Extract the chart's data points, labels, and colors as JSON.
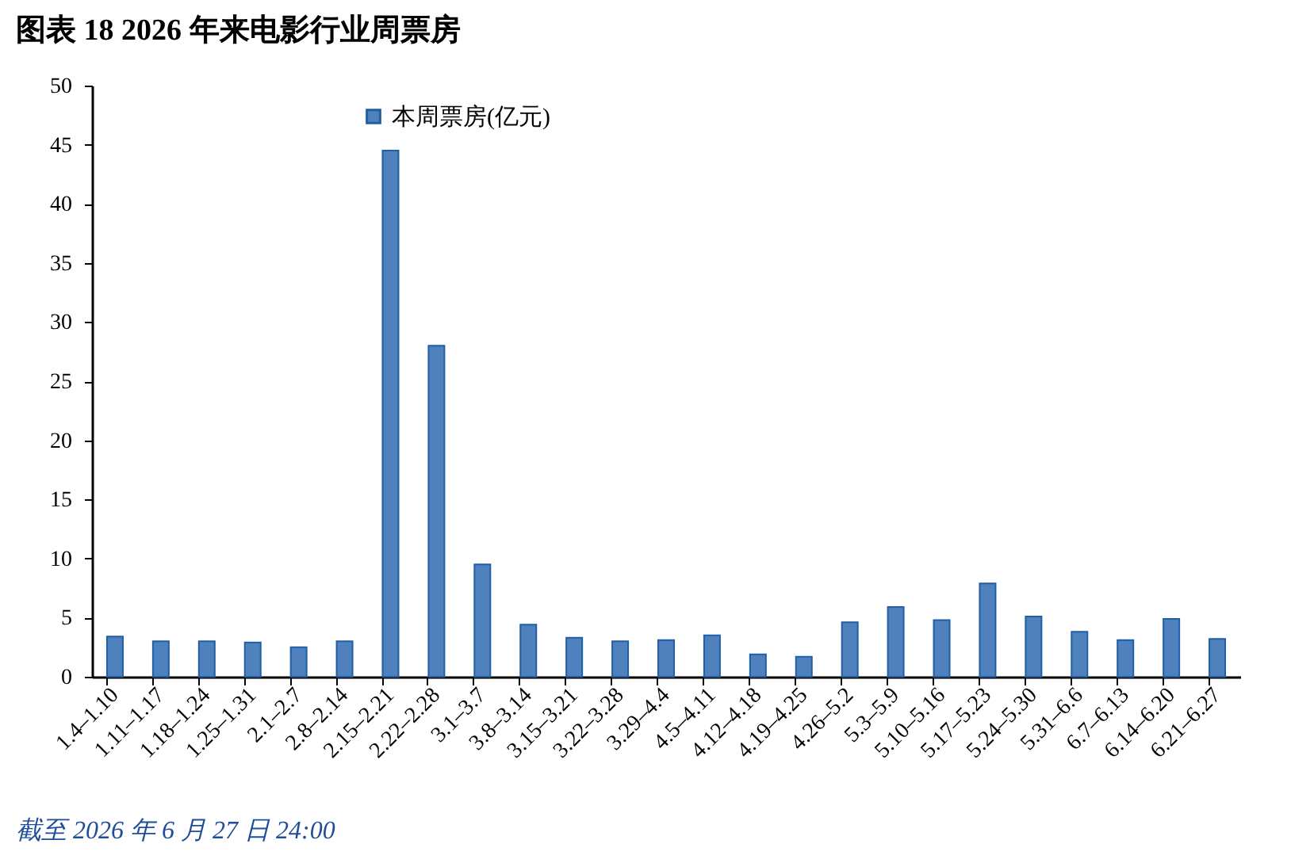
{
  "chart_data": {
    "type": "bar",
    "title": "图表 18   2026 年来电影行业周票房",
    "categories": [
      "1.4–1.10",
      "1.11–1.17",
      "1.18–1.24",
      "1.25–1.31",
      "2.1–2.7",
      "2.8–2.14",
      "2.15–2.21",
      "2.22–2.28",
      "3.1–3.7",
      "3.8–3.14",
      "3.15–3.21",
      "3.22–3.28",
      "3.29–4.4",
      "4.5–4.11",
      "4.12–4.18",
      "4.19–4.25",
      "4.26–5.2",
      "5.3–5.9",
      "5.10–5.16",
      "5.17–5.23",
      "5.24–5.30",
      "5.31–6.6",
      "6.7–6.13",
      "6.14–6.20",
      "6.21–6.27"
    ],
    "series": [
      {
        "name": "本周票房(亿元)",
        "color": "#4f81bd",
        "values": [
          3.4,
          3.0,
          3.0,
          2.9,
          2.5,
          3.0,
          44.5,
          28.0,
          9.5,
          4.4,
          3.3,
          3.0,
          3.1,
          3.5,
          1.9,
          1.7,
          4.6,
          5.9,
          4.8,
          7.9,
          5.1,
          3.8,
          3.1,
          4.9,
          3.2
        ]
      }
    ],
    "ylim": [
      0,
      50
    ],
    "yticks": [
      0,
      5,
      10,
      15,
      20,
      25,
      30,
      35,
      40,
      45,
      50
    ],
    "grid": false,
    "legend": "top left",
    "annotations": [
      "截至 2026 年 6 月 27 日 24:00"
    ]
  }
}
